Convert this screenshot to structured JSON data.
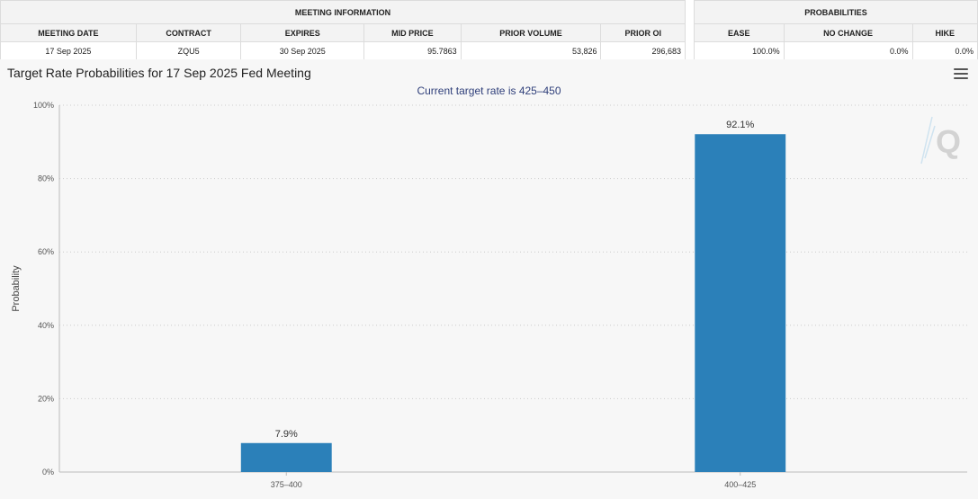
{
  "meeting_info": {
    "group_label": "MEETING INFORMATION",
    "headers": [
      "MEETING DATE",
      "CONTRACT",
      "EXPIRES",
      "MID PRICE",
      "PRIOR VOLUME",
      "PRIOR OI"
    ],
    "row": [
      "17 Sep 2025",
      "ZQU5",
      "30 Sep 2025",
      "95.7863",
      "53,826",
      "296,683"
    ]
  },
  "probabilities": {
    "group_label": "PROBABILITIES",
    "headers": [
      "EASE",
      "NO CHANGE",
      "HIKE"
    ],
    "row": [
      "100.0%",
      "0.0%",
      "0.0%"
    ]
  },
  "chart_data": {
    "type": "bar",
    "title": "Target Rate Probabilities for 17 Sep 2025 Fed Meeting",
    "subtitle": "Current target rate is 425–450",
    "ylabel": "Probability",
    "xlabel": "",
    "categories": [
      "375–400",
      "400–425"
    ],
    "values": [
      7.9,
      92.1
    ],
    "data_labels": [
      "7.9%",
      "92.1%"
    ],
    "ylim": [
      0,
      100
    ],
    "yticks": [
      0,
      20,
      40,
      60,
      80,
      100
    ],
    "ytick_labels": [
      "0%",
      "20%",
      "40%",
      "60%",
      "80%",
      "100%"
    ],
    "grid": true,
    "bar_color": "#2b80b9"
  },
  "menu": {
    "icon": "hamburger-menu-icon"
  },
  "logo": {
    "icon": "q-logo-icon"
  }
}
